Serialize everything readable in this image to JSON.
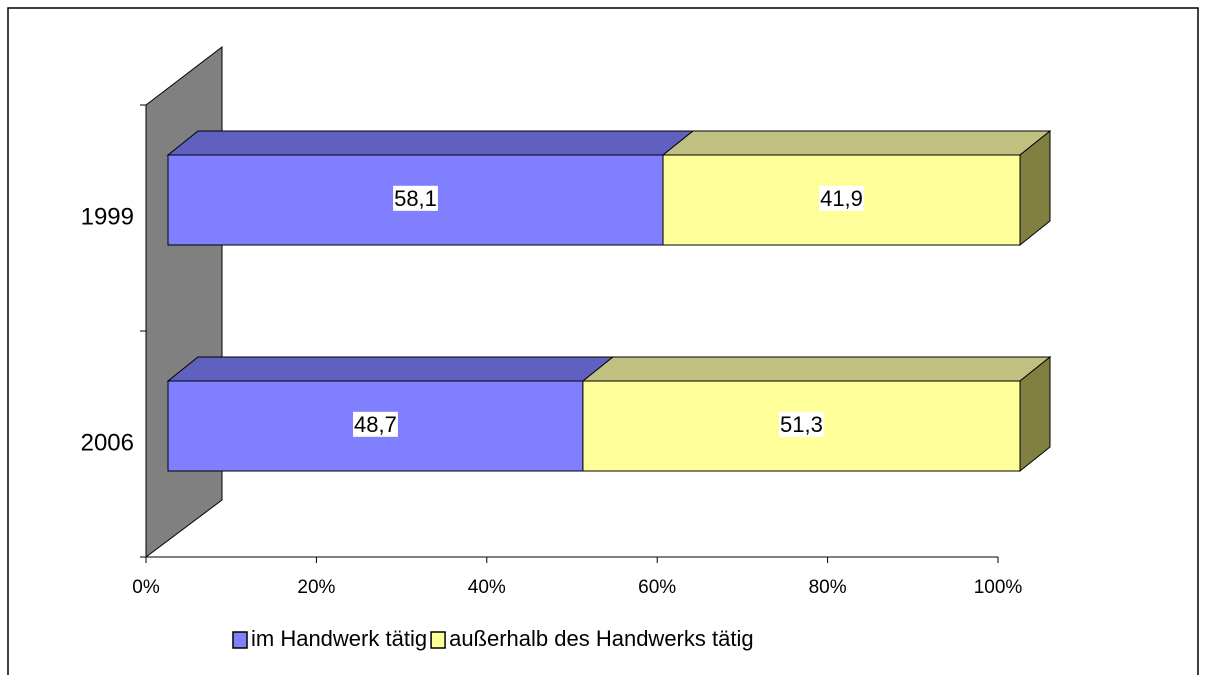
{
  "chart_data": {
    "type": "bar3d_stacked_horizontal",
    "categories": [
      "1999",
      "2006"
    ],
    "series": [
      {
        "name": "im Handwerk tätig",
        "color": "#8080ff",
        "top_color": "#6060c0",
        "values": [
          58.1,
          48.7
        ],
        "value_labels": [
          "58,1",
          "48,7"
        ]
      },
      {
        "name": "außerhalb des Handwerks tätig",
        "color": "#ffff99",
        "top_color": "#c0c080",
        "side_color": "#808040",
        "values": [
          41.9,
          51.3
        ],
        "value_labels": [
          "41,9",
          "51,3"
        ]
      }
    ],
    "xlim": [
      0,
      100
    ],
    "xticks": [
      {
        "value": 0,
        "label": "0%"
      },
      {
        "value": 20,
        "label": "20%"
      },
      {
        "value": 40,
        "label": "40%"
      },
      {
        "value": 60,
        "label": "60%"
      },
      {
        "value": 80,
        "label": "80%"
      },
      {
        "value": 100,
        "label": "100%"
      }
    ],
    "legend": "bottom"
  }
}
